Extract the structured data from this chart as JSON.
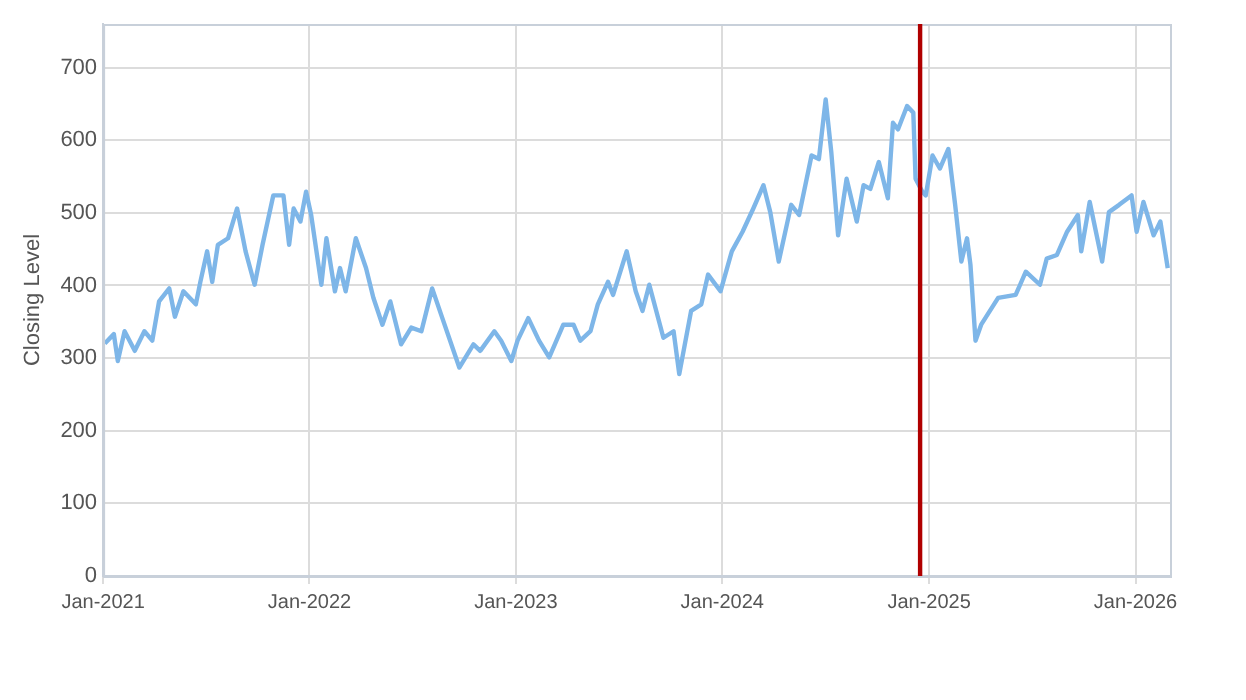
{
  "chart_data": {
    "type": "line",
    "ylabel": "Closing Level",
    "xlim": [
      "2021-01-01",
      "2026-03-03"
    ],
    "ylim": [
      0,
      760
    ],
    "xticks": [
      {
        "value": "2021-01-01",
        "label": "Jan-2021"
      },
      {
        "value": "2022-01-01",
        "label": "Jan-2022"
      },
      {
        "value": "2023-01-01",
        "label": "Jan-2023"
      },
      {
        "value": "2024-01-01",
        "label": "Jan-2024"
      },
      {
        "value": "2025-01-01",
        "label": "Jan-2025"
      },
      {
        "value": "2026-01-01",
        "label": "Jan-2026"
      }
    ],
    "yticks": [
      0,
      100,
      200,
      300,
      400,
      500,
      600,
      700
    ],
    "grid": true,
    "legend": false,
    "marker": "none",
    "line_style": "solid",
    "ref_lines": [
      {
        "axis": "x",
        "value": "2024-12-16",
        "color": "#b00000"
      }
    ],
    "series": [
      {
        "color": "#7eb6e8",
        "x": [
          "2021-01-04",
          "2021-01-20",
          "2021-01-27",
          "2021-02-08",
          "2021-02-26",
          "2021-03-15",
          "2021-03-29",
          "2021-04-10",
          "2021-04-28",
          "2021-05-08",
          "2021-05-23",
          "2021-06-14",
          "2021-06-22",
          "2021-07-04",
          "2021-07-13",
          "2021-07-23",
          "2021-08-10",
          "2021-08-26",
          "2021-09-10",
          "2021-09-26",
          "2021-10-10",
          "2021-10-29",
          "2021-11-16",
          "2021-11-26",
          "2021-12-04",
          "2021-12-16",
          "2021-12-26",
          "2022-01-04",
          "2022-01-22",
          "2022-01-31",
          "2022-02-15",
          "2022-02-24",
          "2022-03-06",
          "2022-03-24",
          "2022-04-11",
          "2022-04-24",
          "2022-05-10",
          "2022-05-24",
          "2022-06-12",
          "2022-06-30",
          "2022-07-18",
          "2022-08-06",
          "2022-08-24",
          "2022-09-23",
          "2022-10-18",
          "2022-10-30",
          "2022-11-24",
          "2022-12-06",
          "2022-12-24",
          "2023-01-04",
          "2023-01-23",
          "2023-02-11",
          "2023-03-01",
          "2023-03-26",
          "2023-04-13",
          "2023-04-25",
          "2023-05-13",
          "2023-05-26",
          "2023-06-13",
          "2023-06-22",
          "2023-07-16",
          "2023-08-01",
          "2023-08-13",
          "2023-08-25",
          "2023-09-19",
          "2023-10-07",
          "2023-10-17",
          "2023-11-07",
          "2023-11-25",
          "2023-12-07",
          "2023-12-29",
          "2024-01-18",
          "2024-02-06",
          "2024-02-25",
          "2024-03-14",
          "2024-03-26",
          "2024-04-10",
          "2024-05-02",
          "2024-05-16",
          "2024-06-07",
          "2024-06-20",
          "2024-07-02",
          "2024-07-12",
          "2024-07-24",
          "2024-08-08",
          "2024-08-26",
          "2024-09-07",
          "2024-09-19",
          "2024-10-04",
          "2024-10-20",
          "2024-10-29",
          "2024-11-07",
          "2024-11-23",
          "2024-12-04",
          "2024-12-08",
          "2024-12-20",
          "2024-12-26",
          "2025-01-07",
          "2025-01-20",
          "2025-02-04",
          "2025-02-16",
          "2025-02-27",
          "2025-03-09",
          "2025-03-15",
          "2025-03-24",
          "2025-04-03",
          "2025-05-03",
          "2025-06-03",
          "2025-06-21",
          "2025-07-16",
          "2025-07-28",
          "2025-08-15",
          "2025-09-02",
          "2025-09-21",
          "2025-09-27",
          "2025-10-12",
          "2025-11-03",
          "2025-11-15",
          "2025-12-03",
          "2025-12-25",
          "2026-01-03",
          "2026-01-15",
          "2026-02-02",
          "2026-02-14",
          "2026-02-27"
        ],
        "values": [
          320,
          333,
          296,
          337,
          310,
          337,
          324,
          378,
          396,
          357,
          392,
          374,
          405,
          447,
          405,
          456,
          465,
          506,
          447,
          401,
          456,
          524,
          524,
          456,
          506,
          488,
          529,
          497,
          401,
          465,
          392,
          424,
          392,
          465,
          424,
          383,
          346,
          378,
          319,
          342,
          337,
          396,
          355,
          287,
          319,
          310,
          337,
          324,
          296,
          324,
          355,
          324,
          301,
          346,
          346,
          324,
          337,
          374,
          405,
          387,
          447,
          392,
          365,
          401,
          328,
          337,
          278,
          365,
          374,
          415,
          392,
          447,
          474,
          506,
          538,
          501,
          433,
          511,
          497,
          579,
          574,
          656,
          583,
          469,
          547,
          488,
          538,
          533,
          570,
          520,
          624,
          615,
          647,
          638,
          547,
          529,
          524,
          579,
          561,
          588,
          511,
          433,
          465,
          429,
          324,
          346,
          383,
          387,
          419,
          401,
          437,
          442,
          474,
          497,
          447,
          515,
          433,
          501,
          511,
          524,
          474,
          515,
          469,
          488,
          424
        ]
      }
    ]
  }
}
